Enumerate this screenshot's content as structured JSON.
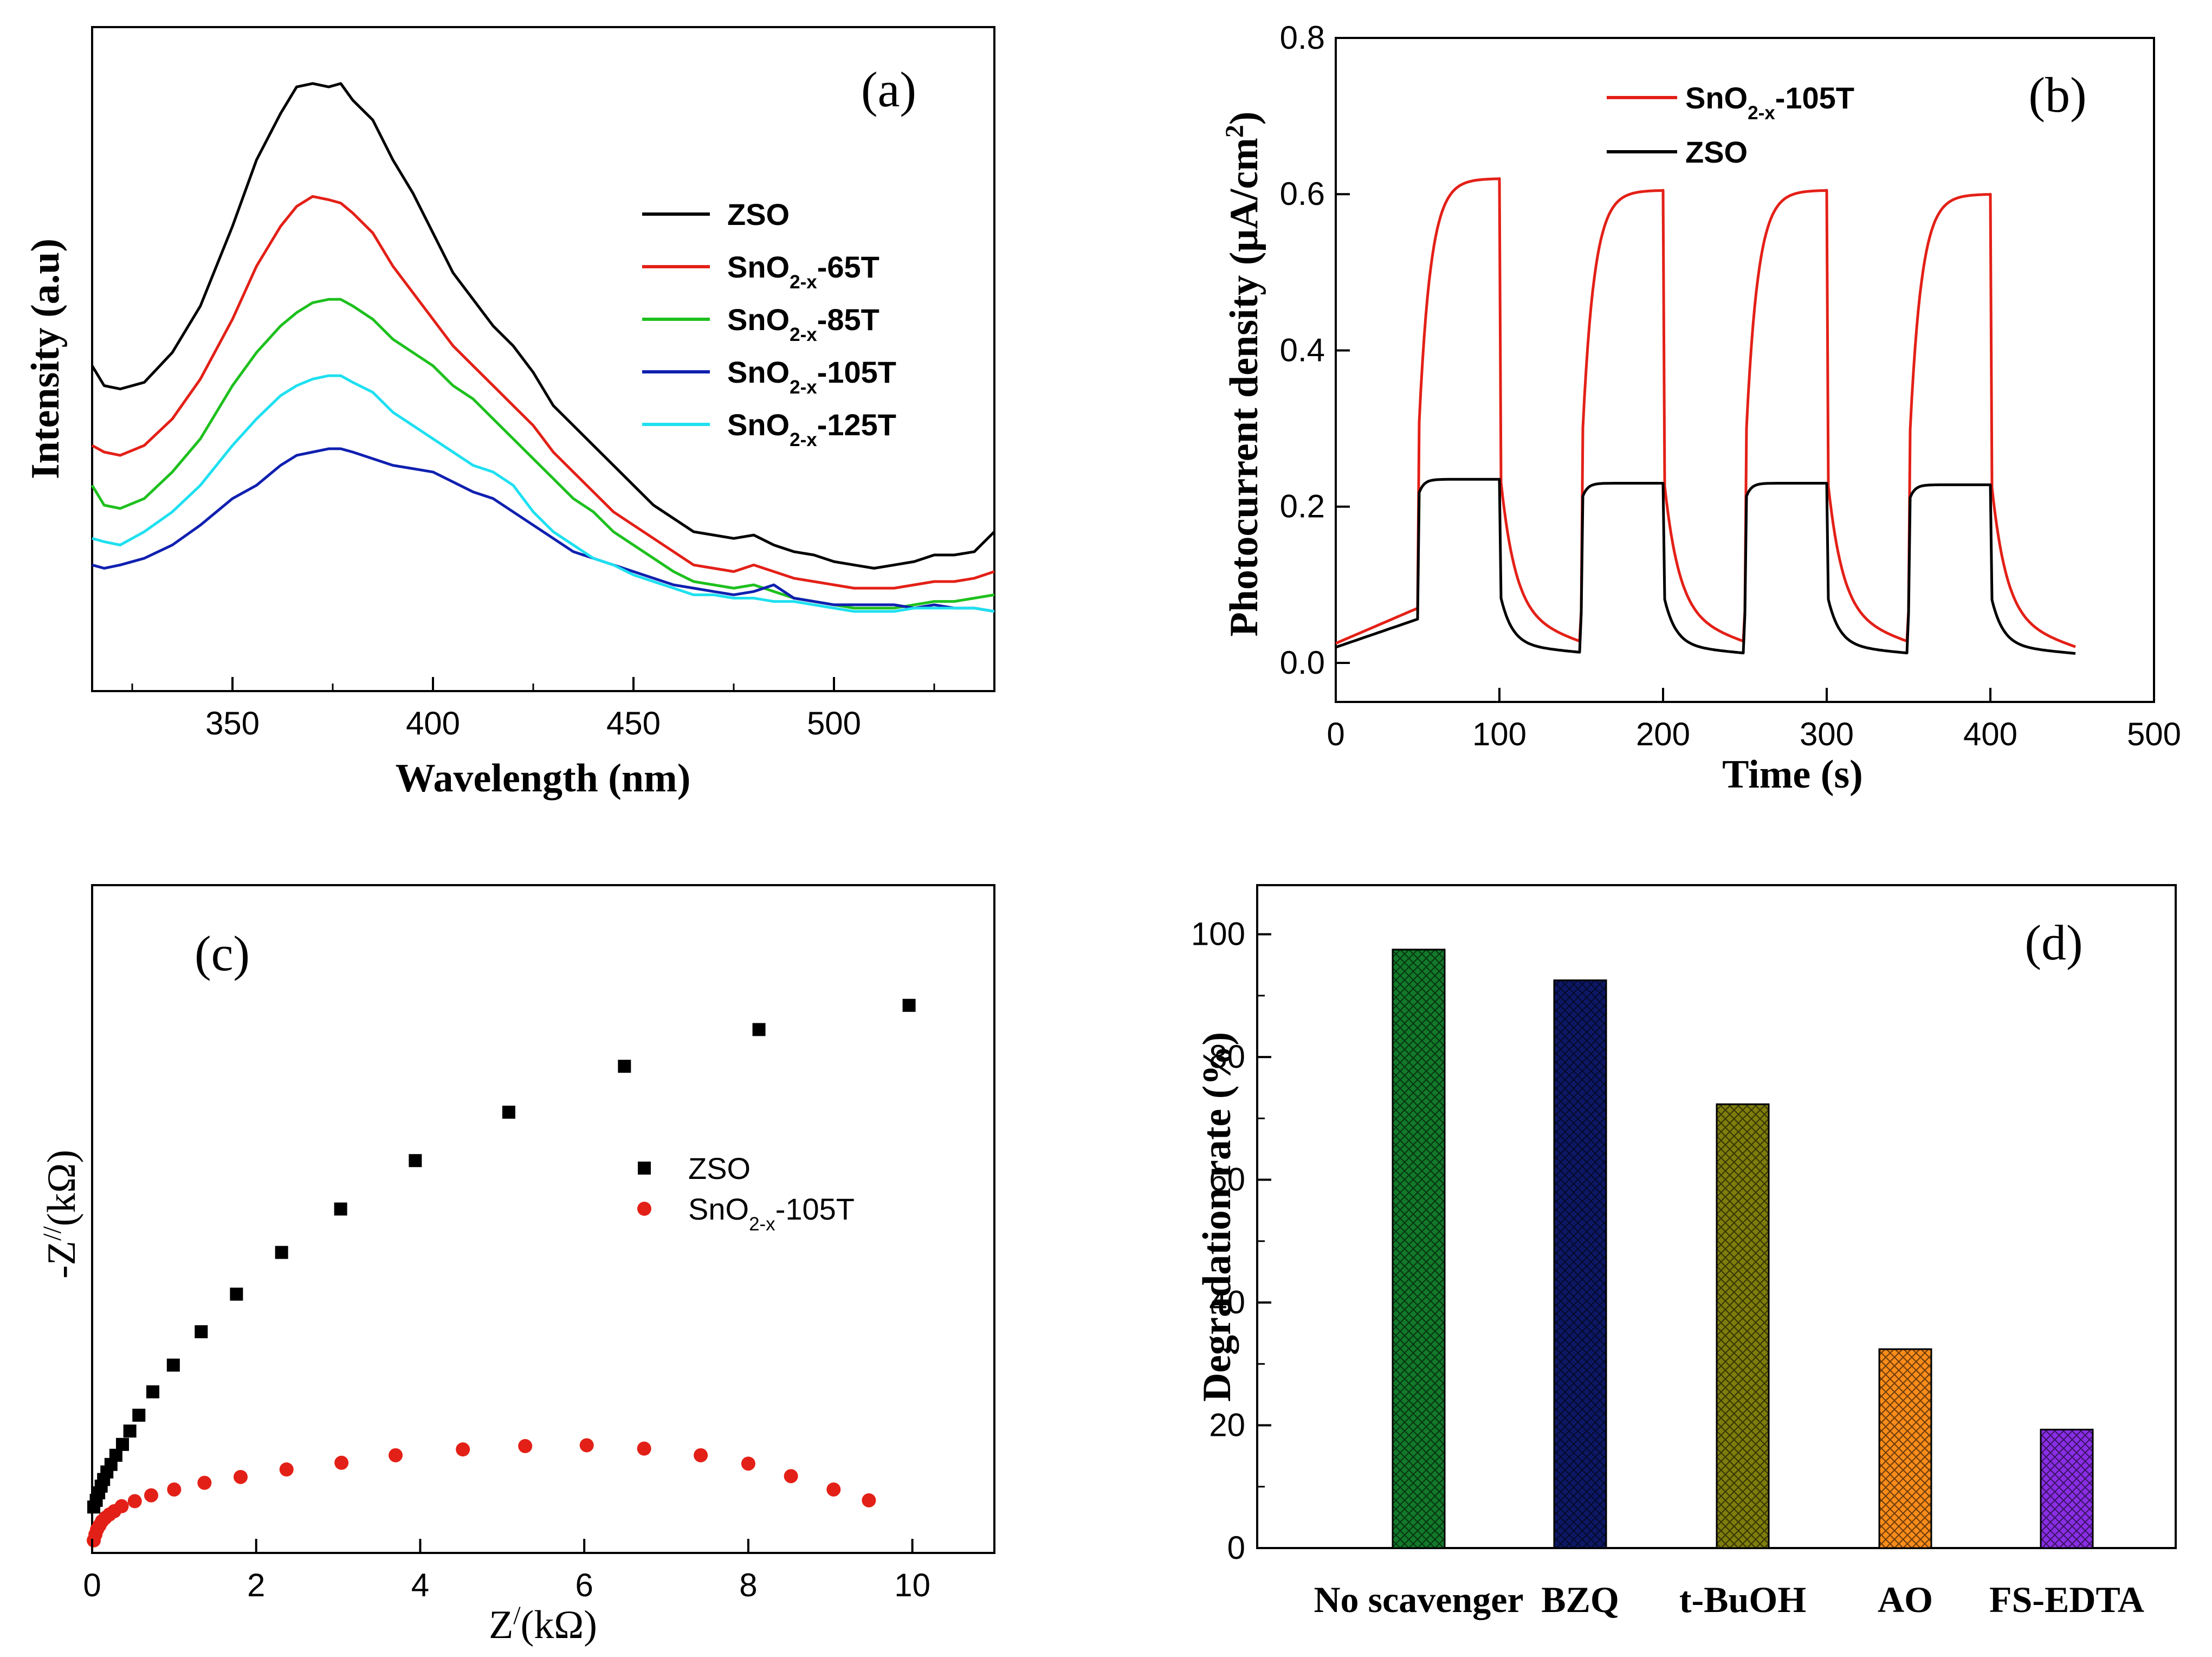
{
  "chart_data": [
    {
      "panel": "a",
      "type": "line",
      "panel_label": "(a)",
      "xlabel": "Wavelength (nm)",
      "ylabel": "Intensity (a.u)",
      "xlim": [
        315,
        540
      ],
      "ylim": [
        0,
        1
      ],
      "xticks": [
        350,
        400,
        450,
        500
      ],
      "yticks": [],
      "legend_position": "center-right",
      "series": [
        {
          "name": "ZSO",
          "base": "ZSO",
          "sub": "",
          "suffix": "",
          "color": "#000000",
          "x": [
            315,
            318,
            322,
            328,
            335,
            342,
            350,
            356,
            362,
            366,
            370,
            374,
            377,
            380,
            385,
            390,
            395,
            400,
            405,
            410,
            415,
            420,
            425,
            430,
            435,
            440,
            445,
            450,
            455,
            460,
            465,
            470,
            475,
            480,
            485,
            490,
            495,
            500,
            505,
            510,
            515,
            520,
            525,
            530,
            535,
            540
          ],
          "y": [
            0.49,
            0.46,
            0.455,
            0.465,
            0.51,
            0.58,
            0.7,
            0.8,
            0.87,
            0.91,
            0.915,
            0.91,
            0.915,
            0.89,
            0.86,
            0.8,
            0.75,
            0.69,
            0.63,
            0.59,
            0.55,
            0.52,
            0.48,
            0.43,
            0.4,
            0.37,
            0.34,
            0.31,
            0.28,
            0.26,
            0.24,
            0.235,
            0.23,
            0.235,
            0.22,
            0.21,
            0.205,
            0.195,
            0.19,
            0.185,
            0.19,
            0.195,
            0.205,
            0.205,
            0.21,
            0.24
          ]
        },
        {
          "name": "SnO2-x-65T",
          "base": "SnO",
          "sub": "2-x",
          "suffix": "-65T",
          "color": "#e32017",
          "x": [
            315,
            318,
            322,
            328,
            335,
            342,
            350,
            356,
            362,
            366,
            370,
            374,
            377,
            380,
            385,
            390,
            395,
            400,
            405,
            410,
            415,
            420,
            425,
            430,
            435,
            440,
            445,
            450,
            455,
            460,
            465,
            470,
            475,
            480,
            485,
            490,
            495,
            500,
            505,
            510,
            515,
            520,
            525,
            530,
            535,
            540
          ],
          "y": [
            0.37,
            0.36,
            0.355,
            0.37,
            0.41,
            0.47,
            0.56,
            0.64,
            0.7,
            0.73,
            0.745,
            0.74,
            0.735,
            0.72,
            0.69,
            0.64,
            0.6,
            0.56,
            0.52,
            0.49,
            0.46,
            0.43,
            0.4,
            0.36,
            0.33,
            0.3,
            0.27,
            0.25,
            0.23,
            0.21,
            0.19,
            0.185,
            0.18,
            0.19,
            0.18,
            0.17,
            0.165,
            0.16,
            0.155,
            0.155,
            0.155,
            0.16,
            0.165,
            0.165,
            0.17,
            0.18
          ]
        },
        {
          "name": "SnO2-x-85T",
          "base": "SnO",
          "sub": "2-x",
          "suffix": "-85T",
          "color": "#1ec01e",
          "x": [
            315,
            318,
            322,
            328,
            335,
            342,
            350,
            356,
            362,
            366,
            370,
            374,
            377,
            380,
            385,
            390,
            395,
            400,
            405,
            410,
            415,
            420,
            425,
            430,
            435,
            440,
            445,
            450,
            455,
            460,
            465,
            470,
            475,
            480,
            485,
            490,
            495,
            500,
            505,
            510,
            515,
            520,
            525,
            530,
            535,
            540
          ],
          "y": [
            0.31,
            0.28,
            0.275,
            0.29,
            0.33,
            0.38,
            0.46,
            0.51,
            0.55,
            0.57,
            0.585,
            0.59,
            0.59,
            0.58,
            0.56,
            0.53,
            0.51,
            0.49,
            0.46,
            0.44,
            0.41,
            0.38,
            0.35,
            0.32,
            0.29,
            0.27,
            0.24,
            0.22,
            0.2,
            0.18,
            0.165,
            0.16,
            0.155,
            0.16,
            0.15,
            0.14,
            0.135,
            0.13,
            0.125,
            0.125,
            0.125,
            0.13,
            0.135,
            0.135,
            0.14,
            0.145
          ]
        },
        {
          "name": "SnO2-x-105T",
          "base": "SnO",
          "sub": "2-x",
          "suffix": "-105T",
          "color": "#1020b0",
          "x": [
            315,
            318,
            322,
            328,
            335,
            342,
            350,
            356,
            362,
            366,
            370,
            374,
            377,
            380,
            385,
            390,
            395,
            400,
            405,
            410,
            415,
            420,
            425,
            430,
            435,
            440,
            445,
            450,
            455,
            460,
            465,
            470,
            475,
            480,
            485,
            490,
            495,
            500,
            505,
            510,
            515,
            520,
            525,
            530,
            535,
            540
          ],
          "y": [
            0.19,
            0.185,
            0.19,
            0.2,
            0.22,
            0.25,
            0.29,
            0.31,
            0.34,
            0.355,
            0.36,
            0.365,
            0.365,
            0.36,
            0.35,
            0.34,
            0.335,
            0.33,
            0.315,
            0.3,
            0.29,
            0.27,
            0.25,
            0.23,
            0.21,
            0.2,
            0.19,
            0.18,
            0.17,
            0.16,
            0.155,
            0.15,
            0.145,
            0.15,
            0.16,
            0.14,
            0.135,
            0.13,
            0.13,
            0.13,
            0.13,
            0.125,
            0.13,
            0.125,
            0.125,
            0.12
          ]
        },
        {
          "name": "SnO2-x-125T",
          "base": "SnO",
          "sub": "2-x",
          "suffix": "-125T",
          "color": "#1ee0f0",
          "x": [
            315,
            318,
            322,
            328,
            335,
            342,
            350,
            356,
            362,
            366,
            370,
            374,
            377,
            380,
            385,
            390,
            395,
            400,
            405,
            410,
            415,
            420,
            425,
            430,
            435,
            440,
            445,
            450,
            455,
            460,
            465,
            470,
            475,
            480,
            485,
            490,
            495,
            500,
            505,
            510,
            515,
            520,
            525,
            530,
            535,
            540
          ],
          "y": [
            0.23,
            0.225,
            0.22,
            0.24,
            0.27,
            0.31,
            0.37,
            0.41,
            0.445,
            0.46,
            0.47,
            0.475,
            0.475,
            0.465,
            0.45,
            0.42,
            0.4,
            0.38,
            0.36,
            0.34,
            0.33,
            0.31,
            0.27,
            0.24,
            0.22,
            0.2,
            0.19,
            0.175,
            0.165,
            0.155,
            0.145,
            0.145,
            0.14,
            0.14,
            0.135,
            0.135,
            0.13,
            0.125,
            0.12,
            0.12,
            0.12,
            0.125,
            0.125,
            0.125,
            0.125,
            0.12
          ]
        }
      ]
    },
    {
      "panel": "b",
      "type": "line",
      "panel_label": "(b)",
      "xlabel": "Time (s)",
      "ylabel": "Photocurrent density (μA/cm",
      "ylabel_sup": "2",
      "ylabel_close": ")",
      "xlim": [
        0,
        500
      ],
      "ylim": [
        -0.05,
        0.8
      ],
      "xticks": [
        0,
        100,
        200,
        300,
        400,
        500
      ],
      "yticks": [
        0.0,
        0.2,
        0.4,
        0.6,
        0.8
      ],
      "legend_position": "top-left",
      "light_on": [
        50,
        150,
        250,
        350
      ],
      "light_off": [
        100,
        200,
        300,
        400
      ],
      "series": [
        {
          "name": "SnO2-x-105T",
          "base": "SnO",
          "sub": "2-x",
          "suffix": "-105T",
          "color": "#e32017",
          "baseline_start": 0.025,
          "peak": [
            0.62,
            0.605,
            0.605,
            0.6
          ],
          "dark_end": [
            0.025,
            0.025,
            0.025,
            0.02
          ]
        },
        {
          "name": "ZSO",
          "base": "ZSO",
          "sub": "",
          "suffix": "",
          "color": "#000000",
          "baseline_start": 0.02,
          "peak": [
            0.235,
            0.23,
            0.23,
            0.228
          ],
          "dark_end": [
            0.013,
            0.012,
            0.012,
            0.012
          ]
        }
      ]
    },
    {
      "panel": "c",
      "type": "scatter",
      "panel_label": "(c)",
      "xlabel": "Z",
      "xlabel_sup": "/",
      "xlabel_unit": "(kΩ)",
      "ylabel": "-Z",
      "ylabel_sup": "//",
      "ylabel_unit": "(kΩ)",
      "xlim": [
        0,
        11
      ],
      "ylim": [
        -0.5,
        7.5
      ],
      "xticks": [
        0,
        2,
        4,
        6,
        8,
        10
      ],
      "yticks": [],
      "legend_position": "center",
      "series": [
        {
          "name": "ZSO",
          "base": "ZSO",
          "sub": "",
          "suffix": "",
          "marker": "square",
          "color": "#000000",
          "x": [
            0.02,
            0.05,
            0.08,
            0.11,
            0.14,
            0.18,
            0.23,
            0.29,
            0.37,
            0.46,
            0.57,
            0.74,
            0.99,
            1.33,
            1.76,
            2.31,
            3.03,
            3.94,
            5.08,
            6.49,
            8.13,
            9.96
          ],
          "y": [
            0.05,
            0.13,
            0.22,
            0.3,
            0.38,
            0.47,
            0.56,
            0.67,
            0.8,
            0.96,
            1.15,
            1.43,
            1.75,
            2.15,
            2.6,
            3.1,
            3.62,
            4.2,
            4.78,
            5.33,
            5.77,
            6.06
          ]
        },
        {
          "name": "SnO2-x-105T",
          "base": "SnO",
          "sub": "2-x",
          "suffix": "-105T",
          "marker": "circle",
          "color": "#e32017",
          "x": [
            0.02,
            0.04,
            0.06,
            0.09,
            0.12,
            0.16,
            0.21,
            0.27,
            0.36,
            0.52,
            0.72,
            1.0,
            1.37,
            1.81,
            2.37,
            3.04,
            3.7,
            4.52,
            5.28,
            6.03,
            6.73,
            7.42,
            8.0,
            8.52,
            9.04,
            9.47
          ],
          "y": [
            -0.35,
            -0.28,
            -0.22,
            -0.17,
            -0.12,
            -0.08,
            -0.04,
            0.0,
            0.06,
            0.12,
            0.19,
            0.26,
            0.34,
            0.41,
            0.5,
            0.58,
            0.67,
            0.74,
            0.78,
            0.79,
            0.75,
            0.67,
            0.57,
            0.42,
            0.26,
            0.13
          ]
        }
      ]
    },
    {
      "panel": "d",
      "type": "bar",
      "panel_label": "(d)",
      "xlabel": "",
      "ylabel": "Degradation rate (%)",
      "ylim": [
        0,
        108
      ],
      "yticks": [
        0,
        20,
        40,
        60,
        80,
        100
      ],
      "categories": [
        "No scavenger",
        "BZQ",
        "t-BuOH",
        "AO",
        "FS-EDTA"
      ],
      "values": [
        97.5,
        92.5,
        72.3,
        32.4,
        19.3
      ],
      "colors": [
        "#127a2a",
        "#0c1866",
        "#7f7d0c",
        "#fa8c1a",
        "#8a2ee6"
      ]
    }
  ]
}
